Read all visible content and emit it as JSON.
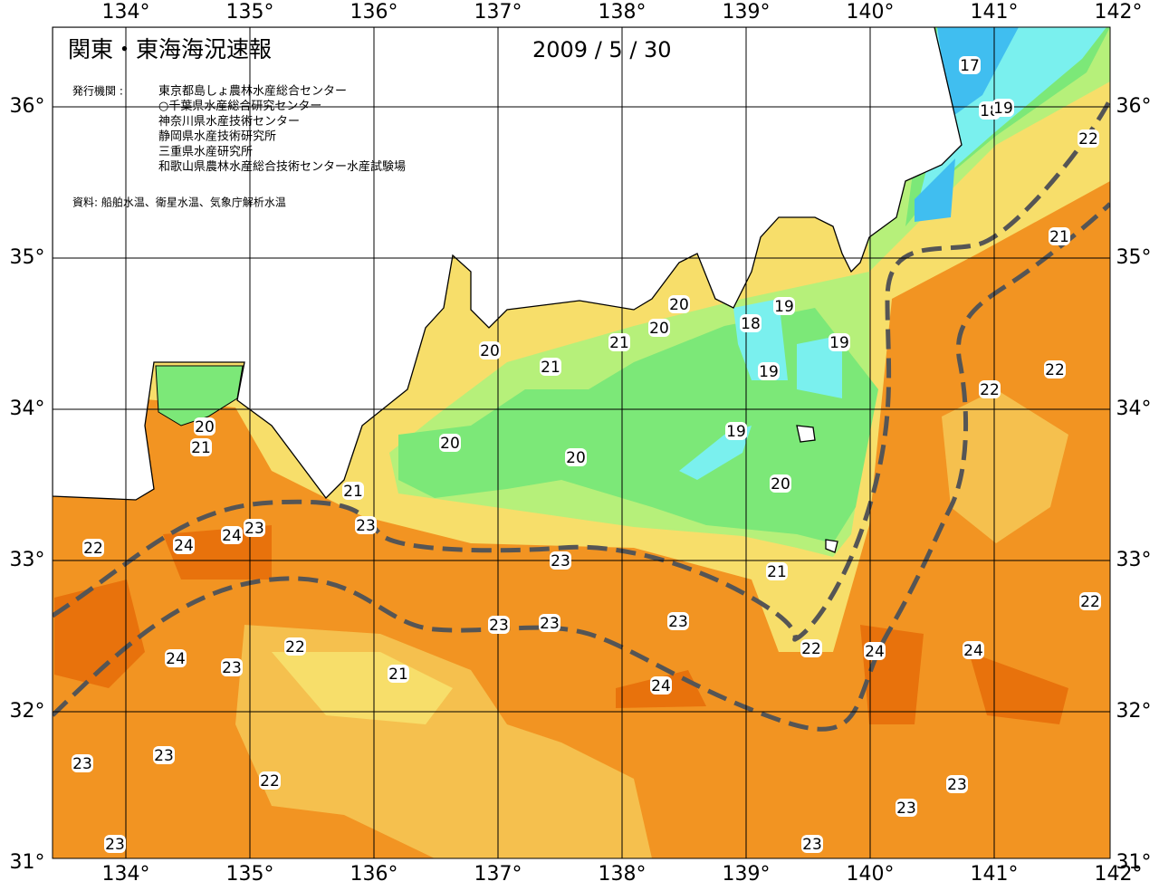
{
  "header": {
    "title": "関東・東海海況速報",
    "date": "2009 / 5 / 30",
    "issuer_label": "発行機関 :",
    "issuers": [
      "東京都島しょ農林水産総合センター",
      "○千葉県水産総合研究センター",
      "神奈川県水産技術センター",
      "静岡県水産技術研究所",
      "三重県水産研究所",
      "和歌山県農林水産総合技術センター水産試験場"
    ],
    "source": "資料: 船舶水温、衛星水温、気象庁解析水温"
  },
  "map": {
    "lon_labels": [
      "134°",
      "135°",
      "136°",
      "137°",
      "138°",
      "139°",
      "140°",
      "141°",
      "142°"
    ],
    "lat_labels": [
      "36°",
      "35°",
      "34°",
      "33°",
      "32°",
      "31°"
    ],
    "isotherm_labels": [
      "17",
      "18",
      "19",
      "22",
      "21",
      "20",
      "20",
      "19",
      "18",
      "19",
      "19",
      "20",
      "21",
      "21",
      "22",
      "22",
      "20",
      "21",
      "19",
      "20",
      "20",
      "20",
      "21",
      "23",
      "24",
      "23",
      "22",
      "24",
      "23",
      "21",
      "22",
      "23",
      "23",
      "23",
      "22",
      "22",
      "24",
      "24",
      "24",
      "23",
      "21",
      "24",
      "23",
      "23",
      "22",
      "23",
      "23",
      "23",
      "23"
    ]
  }
}
